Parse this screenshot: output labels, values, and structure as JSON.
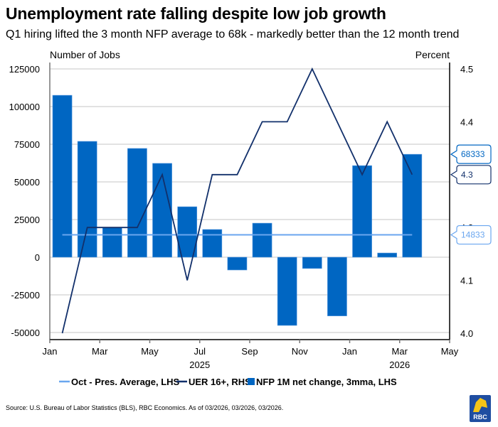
{
  "title": "Unemployment rate falling despite low job growth",
  "subtitle": "Q1 hiring lifted the 3 month NFP average to 68k - markedly better than the 12 month trend",
  "source": "Source: U.S. Bureau of Labor Statistics (BLS), RBC Economics. As of 03/2026, 03/2026, 03/2026.",
  "logo_text": "RBC",
  "colors": {
    "bars": "#0066c2",
    "uer": "#12306b",
    "avg": "#6aa6ef",
    "grid": "#d0d0d0"
  },
  "chart_data": {
    "type": "bar",
    "title": "Unemployment rate falling despite low job growth",
    "ylabel": "Number of Jobs",
    "y2label": "Percent",
    "ylim": [
      -54000,
      130000
    ],
    "y2lim": [
      3.985,
      4.525
    ],
    "yticks": [
      125000,
      100000,
      75000,
      50000,
      25000,
      0,
      -25000,
      -50000
    ],
    "y2ticks": [
      "4.5",
      "4.4",
      "4.3",
      "4.2",
      "4.1",
      "4.0"
    ],
    "xticks": [
      "Jan",
      "Mar",
      "May",
      "Jul",
      "Sep",
      "Nov",
      "Jan",
      "Mar",
      "May"
    ],
    "xyears": [
      "2025",
      "2026"
    ],
    "categories": [
      "Jan 2025",
      "Feb 2025",
      "Mar 2025",
      "Apr 2025",
      "May 2025",
      "Jun 2025",
      "Jul 2025",
      "Aug 2025",
      "Sep 2025",
      "Oct 2025",
      "Nov 2025",
      "Dec 2025",
      "Jan 2026",
      "Feb 2026",
      "Mar 2026"
    ],
    "series": [
      {
        "name": "NFP 1M net change, 3mma, LHS",
        "type": "bar",
        "axis": "left",
        "values": [
          107500,
          76900,
          19500,
          72200,
          62300,
          33500,
          18400,
          -8500,
          22600,
          -45300,
          -7500,
          -39000,
          60800,
          2800,
          68333
        ]
      },
      {
        "name": "UER 16+, RHS",
        "type": "line",
        "axis": "right",
        "values": [
          4.0,
          4.2,
          4.2,
          4.2,
          4.3,
          4.1,
          4.3,
          4.3,
          4.4,
          4.4,
          4.5,
          4.4,
          4.3,
          4.4,
          4.3
        ]
      },
      {
        "name": "Oct - Pres. Average, LHS",
        "type": "line",
        "axis": "left",
        "values": [
          14833,
          14833,
          14833,
          14833,
          14833,
          14833,
          14833,
          14833,
          14833,
          14833,
          14833,
          14833,
          14833,
          14833,
          14833
        ]
      }
    ],
    "callouts": [
      {
        "text": "68333",
        "series": "NFP 1M net change, 3mma, LHS"
      },
      {
        "text": "4.3",
        "series": "UER 16+, RHS"
      },
      {
        "text": "14833",
        "series": "Oct - Pres. Average, LHS"
      }
    ],
    "legend": {
      "position": "bottom",
      "items": [
        "Oct - Pres. Average, LHS",
        "UER 16+, RHS",
        "NFP 1M net change, 3mma, LHS"
      ]
    },
    "grid": true
  }
}
